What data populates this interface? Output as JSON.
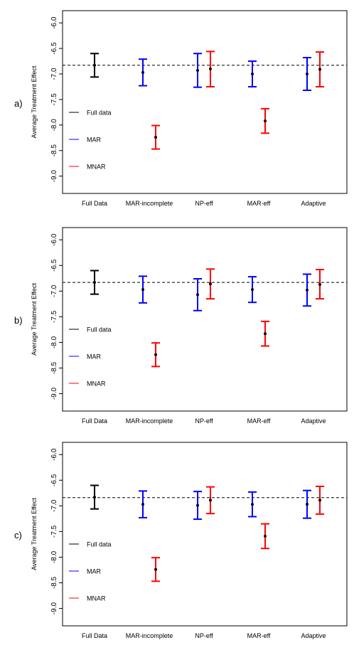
{
  "colors": {
    "full": "#000000",
    "mar": "#0000ff",
    "mnar": "#ff0000"
  },
  "chart_data": [
    {
      "type": "error-bar",
      "panel_label": "a)",
      "ylabel": "Average Treatment Effect",
      "ylim": [
        -9.2,
        -5.9
      ],
      "y_reversed": true,
      "yticks": [
        "-6.0",
        "-6.5",
        "-7.0",
        "-7.5",
        "-8.0",
        "-8.5",
        "-9.0"
      ],
      "categories": [
        "Full Data",
        "MAR-incomplete",
        "NP-eff",
        "MAR-eff",
        "Adaptive"
      ],
      "reference_line": -6.83,
      "legend": [
        "Full data",
        "MAR",
        "MNAR"
      ],
      "points": [
        {
          "category": "Full Data",
          "series": "Full data",
          "estimate": -6.83,
          "lower": -7.06,
          "upper": -6.6
        },
        {
          "category": "MAR-incomplete",
          "series": "MAR",
          "estimate": -6.97,
          "lower": -7.23,
          "upper": -6.71
        },
        {
          "category": "MAR-incomplete",
          "series": "MNAR",
          "estimate": -8.24,
          "lower": -8.47,
          "upper": -8.01
        },
        {
          "category": "NP-eff",
          "series": "MAR",
          "estimate": -6.93,
          "lower": -7.26,
          "upper": -6.6
        },
        {
          "category": "NP-eff",
          "series": "MNAR",
          "estimate": -6.9,
          "lower": -7.25,
          "upper": -6.56
        },
        {
          "category": "MAR-eff",
          "series": "MAR",
          "estimate": -7.0,
          "lower": -7.25,
          "upper": -6.75
        },
        {
          "category": "MAR-eff",
          "series": "MNAR",
          "estimate": -7.92,
          "lower": -8.16,
          "upper": -7.68
        },
        {
          "category": "Adaptive",
          "series": "MAR",
          "estimate": -7.0,
          "lower": -7.32,
          "upper": -6.68
        },
        {
          "category": "Adaptive",
          "series": "MNAR",
          "estimate": -6.91,
          "lower": -7.25,
          "upper": -6.57
        }
      ]
    },
    {
      "type": "error-bar",
      "panel_label": "b)",
      "ylabel": "Average Treatment Effect",
      "ylim": [
        -9.2,
        -5.9
      ],
      "y_reversed": true,
      "yticks": [
        "-6.0",
        "-6.5",
        "-7.0",
        "-7.5",
        "-8.0",
        "-8.5",
        "-9.0"
      ],
      "categories": [
        "Full Data",
        "MAR-incomplete",
        "NP-eff",
        "MAR-eff",
        "Adaptive"
      ],
      "reference_line": -6.83,
      "legend": [
        "Full data",
        "MAR",
        "MNAR"
      ],
      "points": [
        {
          "category": "Full Data",
          "series": "Full data",
          "estimate": -6.83,
          "lower": -7.06,
          "upper": -6.6
        },
        {
          "category": "MAR-incomplete",
          "series": "MAR",
          "estimate": -6.97,
          "lower": -7.23,
          "upper": -6.71
        },
        {
          "category": "MAR-incomplete",
          "series": "MNAR",
          "estimate": -8.24,
          "lower": -8.47,
          "upper": -8.01
        },
        {
          "category": "NP-eff",
          "series": "MAR",
          "estimate": -7.07,
          "lower": -7.38,
          "upper": -6.76
        },
        {
          "category": "NP-eff",
          "series": "MNAR",
          "estimate": -6.86,
          "lower": -7.15,
          "upper": -6.57
        },
        {
          "category": "MAR-eff",
          "series": "MAR",
          "estimate": -6.97,
          "lower": -7.22,
          "upper": -6.72
        },
        {
          "category": "MAR-eff",
          "series": "MNAR",
          "estimate": -7.83,
          "lower": -8.07,
          "upper": -7.59
        },
        {
          "category": "Adaptive",
          "series": "MAR",
          "estimate": -6.98,
          "lower": -7.29,
          "upper": -6.67
        },
        {
          "category": "Adaptive",
          "series": "MNAR",
          "estimate": -6.87,
          "lower": -7.15,
          "upper": -6.58
        }
      ]
    },
    {
      "type": "error-bar",
      "panel_label": "c)",
      "ylabel": "Average Treatment Effect",
      "ylim": [
        -9.2,
        -5.9
      ],
      "y_reversed": true,
      "yticks": [
        "-6.0",
        "-6.5",
        "-7.0",
        "-7.5",
        "-8.0",
        "-8.5",
        "-9.0"
      ],
      "categories": [
        "Full Data",
        "MAR-incomplete",
        "NP-eff",
        "MAR-eff",
        "Adaptive"
      ],
      "reference_line": -6.84,
      "legend": [
        "Full data",
        "MAR",
        "MNAR"
      ],
      "points": [
        {
          "category": "Full Data",
          "series": "Full data",
          "estimate": -6.83,
          "lower": -7.06,
          "upper": -6.6
        },
        {
          "category": "MAR-incomplete",
          "series": "MAR",
          "estimate": -6.97,
          "lower": -7.23,
          "upper": -6.71
        },
        {
          "category": "MAR-incomplete",
          "series": "MNAR",
          "estimate": -8.24,
          "lower": -8.47,
          "upper": -8.01
        },
        {
          "category": "NP-eff",
          "series": "MAR",
          "estimate": -6.99,
          "lower": -7.26,
          "upper": -6.72
        },
        {
          "category": "NP-eff",
          "series": "MNAR",
          "estimate": -6.89,
          "lower": -7.15,
          "upper": -6.63
        },
        {
          "category": "MAR-eff",
          "series": "MAR",
          "estimate": -6.97,
          "lower": -7.21,
          "upper": -6.73
        },
        {
          "category": "MAR-eff",
          "series": "MNAR",
          "estimate": -7.59,
          "lower": -7.83,
          "upper": -7.35
        },
        {
          "category": "Adaptive",
          "series": "MAR",
          "estimate": -6.97,
          "lower": -7.24,
          "upper": -6.7
        },
        {
          "category": "Adaptive",
          "series": "MNAR",
          "estimate": -6.89,
          "lower": -7.16,
          "upper": -6.62
        }
      ]
    }
  ]
}
